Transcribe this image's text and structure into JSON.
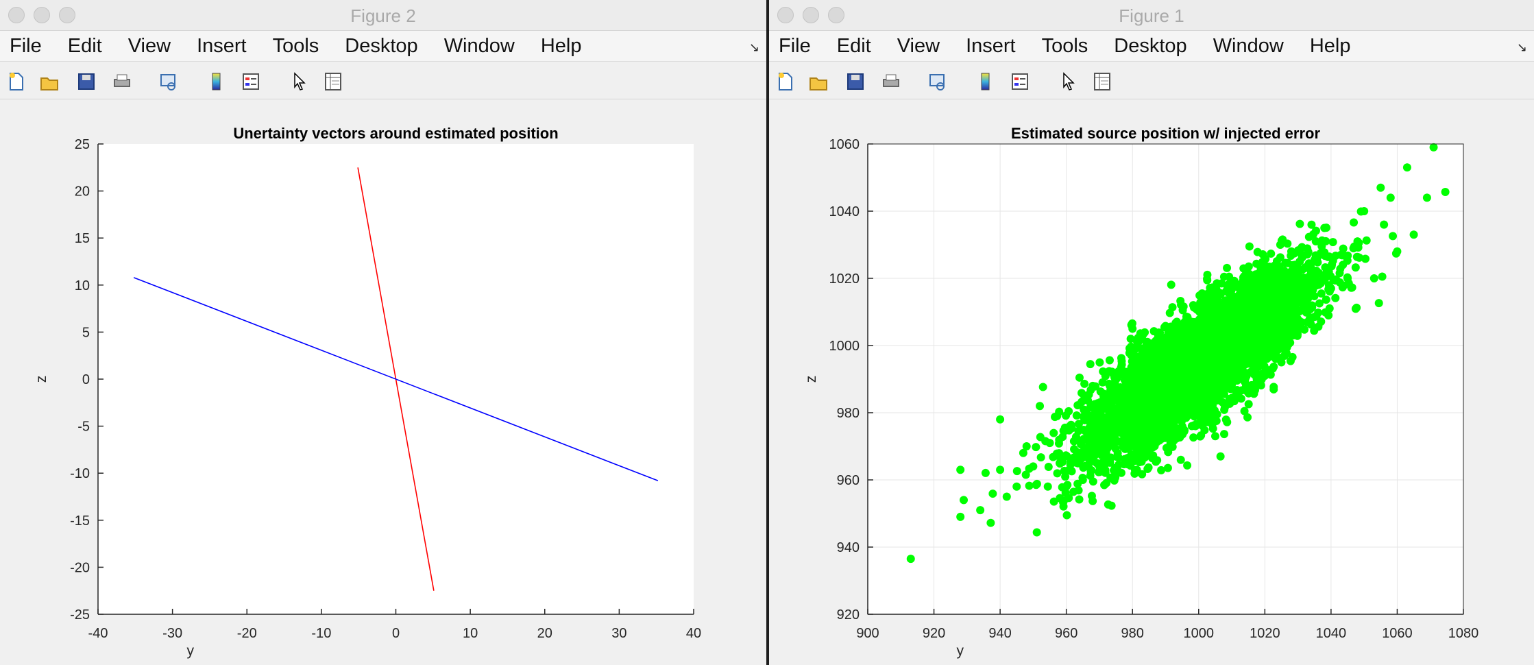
{
  "windows": [
    {
      "title": "Figure 2",
      "menu": [
        "File",
        "Edit",
        "View",
        "Insert",
        "Tools",
        "Desktop",
        "Window",
        "Help"
      ],
      "chart_data": {
        "type": "line",
        "title": "Unertainty vectors around estimated position",
        "xlabel": "y",
        "ylabel": "z",
        "xlim": [
          -40,
          40
        ],
        "ylim": [
          -25,
          25
        ],
        "xticks": [
          -40,
          -30,
          -20,
          -10,
          0,
          10,
          20,
          30,
          40
        ],
        "yticks": [
          -25,
          -20,
          -15,
          -10,
          -5,
          0,
          5,
          10,
          15,
          20,
          25
        ],
        "grid": false,
        "series": [
          {
            "color": "#ff0000",
            "x": [
              -5.1,
              5.1
            ],
            "y": [
              22.5,
              -22.5
            ]
          },
          {
            "color": "#0000ff",
            "x": [
              -35.2,
              35.2
            ],
            "y": [
              10.8,
              -10.8
            ]
          }
        ]
      }
    },
    {
      "title": "Figure 1",
      "menu": [
        "File",
        "Edit",
        "View",
        "Insert",
        "Tools",
        "Desktop",
        "Window",
        "Help"
      ],
      "chart_data": {
        "type": "scatter",
        "title": "Estimated source position w/ injected error",
        "xlabel": "y",
        "ylabel": "z",
        "xlim": [
          900,
          1080
        ],
        "ylim": [
          920,
          1060
        ],
        "xticks": [
          900,
          920,
          940,
          960,
          980,
          1000,
          1020,
          1040,
          1060,
          1080
        ],
        "yticks": [
          920,
          940,
          960,
          980,
          1000,
          1020,
          1040,
          1060
        ],
        "grid": true,
        "color": "#00ff00",
        "series": [
          {
            "x": [
              913,
              928,
              929,
              928,
              934,
              940,
              945,
              940,
              942,
              947,
              950,
              1050,
              1055,
              1058,
              1063,
              1071,
              1069,
              1065,
              1060,
              1056,
              1048,
              1045,
              1040,
              1043,
              1035,
              1030,
              1025,
              1020,
              960,
              965,
              955,
              958,
              952,
              948,
              970,
              975,
              985,
              990,
              995,
              1000,
              1005,
              1010,
              1015,
              980,
              1028,
              1038
            ],
            "y": [
              936.5,
              963,
              954,
              949,
              951,
              963,
              958,
              978,
              955,
              968,
              964,
              1040,
              1047,
              1044,
              1053,
              1059,
              1044,
              1033,
              1028,
              1036,
              1031,
              1020,
              1017,
              1027,
              1018,
              1005,
              995,
              991,
              958,
              960,
              971,
              965,
              982,
              970,
              975,
              980,
              990,
              995,
              1001,
              1005,
              1010,
              1015,
              1020,
              1005,
              1028,
              1035
            ]
          }
        ],
        "cloud": {
          "center": [
            1000,
            995
          ],
          "major_std": 21,
          "minor_std": 6.5,
          "angle_deg": 38,
          "count": 4500
        }
      }
    }
  ]
}
